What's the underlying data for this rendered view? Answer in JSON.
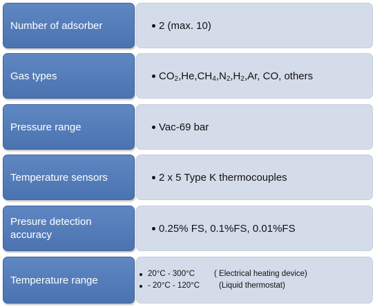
{
  "rows": [
    {
      "label": "Number of adsorber",
      "value": "2 (max. 10)"
    },
    {
      "label": "Gas types",
      "value_parts": {
        "co": "CO",
        "co_sub": "2",
        "he_ch": ",He,CH",
        "ch_sub": "4",
        "n": ",N",
        "n_sub": "2",
        "h": ",H",
        "h_sub": "2",
        "rest": ",Ar, CO, others"
      }
    },
    {
      "label": "Pressure range",
      "value": "Vac-69 bar"
    },
    {
      "label": "Temperature sensors",
      "value": "2 x 5 Type K thermocouples"
    },
    {
      "label": "Presure detection accuracy",
      "value": "0.25% FS, 0.1%FS, 0.01%FS"
    },
    {
      "label": "Temperature range",
      "items": [
        {
          "range": "20°C - 300°C",
          "note": "( Electrical heating device)"
        },
        {
          "range": "- 20°C - 120°C",
          "note": "(Liquid thermostat)"
        }
      ]
    }
  ],
  "colors": {
    "label_bg": "#4f79b6",
    "value_bg": "#d4dbe9"
  }
}
